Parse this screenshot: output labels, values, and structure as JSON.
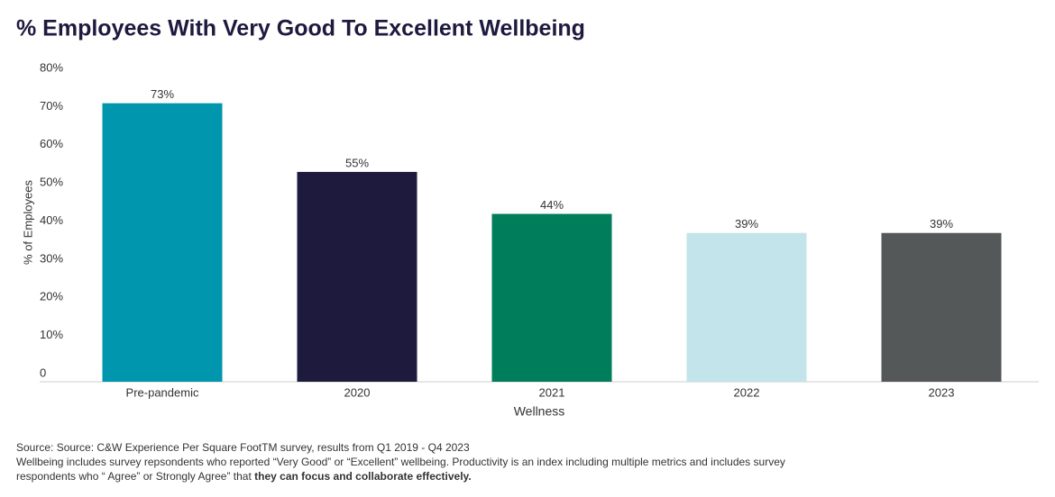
{
  "chart_data": {
    "type": "bar",
    "title": "% Employees With Very Good To Excellent Wellbeing",
    "x_label": "Wellness",
    "y_label": "% of Employees",
    "categories": [
      "Pre-pandemic",
      "2020",
      "2021",
      "2022",
      "2023"
    ],
    "values": [
      73,
      55,
      44,
      39,
      39
    ],
    "value_labels": [
      "73%",
      "55%",
      "44%",
      "39%",
      "39%"
    ],
    "colors": [
      "#0096ae",
      "#1e1a3e",
      "#007d5a",
      "#c2e4ea",
      "#555859"
    ],
    "ylim": [
      0,
      80
    ],
    "yticks": [
      0,
      {
        "value": 10,
        "label": "10%"
      },
      {
        "value": 20,
        "label": "20%"
      },
      {
        "value": 30,
        "label": "30%"
      },
      {
        "value": 40,
        "label": "40%"
      },
      {
        "value": 50,
        "label": "50%"
      },
      {
        "value": 60,
        "label": "60%"
      },
      {
        "value": 70,
        "label": "70%"
      },
      {
        "value": 80,
        "label": "80%"
      }
    ],
    "grid": false
  },
  "footnote": {
    "source": "Source: Source: C&W Experience Per Square FootTM survey, results from Q1 2019 - Q4 2023",
    "line2": "Wellbeing includes survey repsondents who reported “Very Good” or “Excellent” wellbeing. Productivity is an index including multiple metrics and includes survey",
    "line3": "respondents who “ Agree” or Strongly Agree” that",
    "line3_bold": "they can focus and collaborate effectively."
  }
}
